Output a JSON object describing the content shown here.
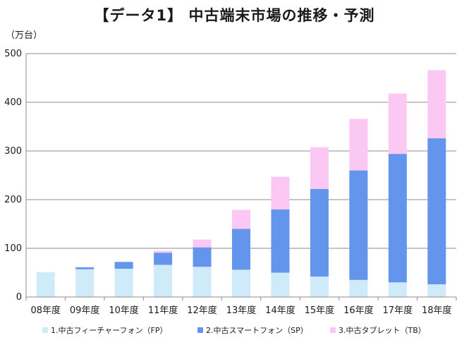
{
  "chart_data": {
    "type": "bar",
    "stacked": true,
    "title": "【データ1】 中古端末市場の推移・予測",
    "ylabel": "（万台）",
    "xlabel": "",
    "ylim": [
      0,
      500
    ],
    "yticks": [
      0,
      100,
      200,
      300,
      400,
      500
    ],
    "grid": true,
    "legend_position": "bottom",
    "categories": [
      "08年度",
      "09年度",
      "10年度",
      "11年度",
      "12年度",
      "13年度",
      "14年度",
      "15年度",
      "16年度",
      "17年度",
      "18年度"
    ],
    "series": [
      {
        "name": "1.中古フィーチャーフォン（FP）",
        "color": "#cfeaf8",
        "values": [
          51,
          57,
          58,
          66,
          62,
          56,
          50,
          42,
          35,
          30,
          26
        ]
      },
      {
        "name": "2.中古スマートフォン（SP）",
        "color": "#6495ed",
        "values": [
          0,
          4,
          14,
          25,
          40,
          84,
          130,
          180,
          225,
          264,
          300
        ]
      },
      {
        "name": "3.中古タブレット（TB）",
        "color": "#fbc8f4",
        "values": [
          0,
          0,
          0,
          4,
          16,
          39,
          67,
          86,
          106,
          124,
          140
        ]
      }
    ]
  }
}
